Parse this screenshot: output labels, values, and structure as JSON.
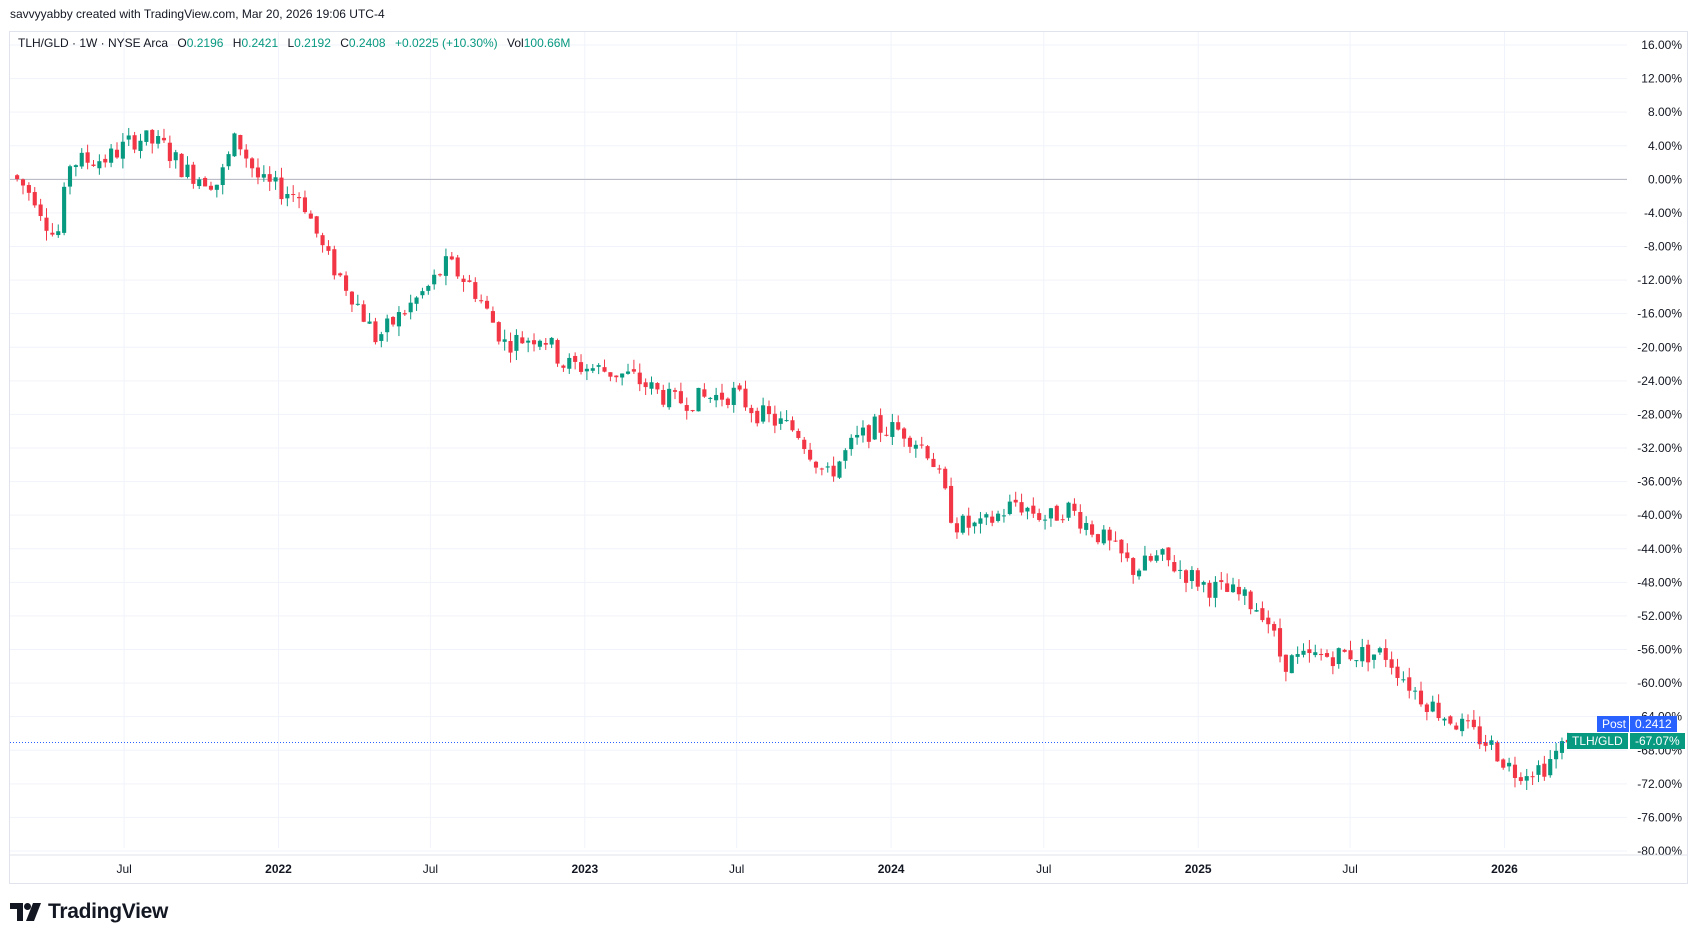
{
  "header": {
    "watermark": "savvyyabby created with TradingView.com, Mar 20, 2026 19:06 UTC-4"
  },
  "legend": {
    "symbol": "TLH/GLD · 1W · NYSE Arca",
    "open_label": "O",
    "open": "0.2196",
    "high_label": "H",
    "high": "0.2421",
    "low_label": "L",
    "low": "0.2192",
    "close_label": "C",
    "close": "0.2408",
    "change": "+0.0225 (+10.30%)",
    "volume_label": "Vol",
    "volume": "100.66M"
  },
  "price_tags": {
    "post_label": "Post",
    "post_value": "0.2412",
    "symbol_label": "TLH/GLD",
    "symbol_value": "-67.07%"
  },
  "brand": {
    "name": "TradingView"
  },
  "colors": {
    "up": "#089981",
    "down": "#f23645",
    "baseline": "#b2b5be",
    "current_line": "#2962ff",
    "post_tag": "#2962ff",
    "grid": "#f0f3fa"
  },
  "chart_data": {
    "type": "candlestick",
    "title": "TLH/GLD · 1W · NYSE Arca",
    "y_scale": "percent",
    "ylim": [
      -80,
      16
    ],
    "y_ticks": [
      "16.00%",
      "12.00%",
      "8.00%",
      "4.00%",
      "0.00%",
      "-4.00%",
      "-8.00%",
      "-12.00%",
      "-16.00%",
      "-20.00%",
      "-24.00%",
      "-28.00%",
      "-32.00%",
      "-36.00%",
      "-40.00%",
      "-44.00%",
      "-48.00%",
      "-52.00%",
      "-56.00%",
      "-60.00%",
      "-64.00%",
      "-68.00%",
      "-72.00%",
      "-76.00%",
      "-80.00%"
    ],
    "x_ticks": [
      {
        "label": "Jul",
        "date": "2021-07-01"
      },
      {
        "label": "2022",
        "date": "2022-01-01"
      },
      {
        "label": "Jul",
        "date": "2022-07-01"
      },
      {
        "label": "2023",
        "date": "2023-01-01"
      },
      {
        "label": "Jul",
        "date": "2023-07-01"
      },
      {
        "label": "2024",
        "date": "2024-01-01"
      },
      {
        "label": "Jul",
        "date": "2024-07-01"
      },
      {
        "label": "2025",
        "date": "2025-01-01"
      },
      {
        "label": "Jul",
        "date": "2025-07-01"
      },
      {
        "label": "2026",
        "date": "2026-01-01"
      }
    ],
    "x_range": [
      "2021-02-15",
      "2026-05-27"
    ],
    "baseline_pct": 0,
    "current_pct": -67.07,
    "trend_pct": [
      {
        "date": "2021-02-20",
        "pct": 0.5
      },
      {
        "date": "2021-03-20",
        "pct": -2.0
      },
      {
        "date": "2021-04-15",
        "pct": -7.5
      },
      {
        "date": "2021-05-01",
        "pct": 2.0
      },
      {
        "date": "2021-06-15",
        "pct": 2.5
      },
      {
        "date": "2021-07-20",
        "pct": 5.0
      },
      {
        "date": "2021-08-20",
        "pct": 4.0
      },
      {
        "date": "2021-09-15",
        "pct": 1.0
      },
      {
        "date": "2021-10-25",
        "pct": -0.5
      },
      {
        "date": "2021-11-15",
        "pct": 5.0
      },
      {
        "date": "2021-12-15",
        "pct": -0.5
      },
      {
        "date": "2022-02-01",
        "pct": -2.0
      },
      {
        "date": "2022-03-01",
        "pct": -9.0
      },
      {
        "date": "2022-04-01",
        "pct": -13.5
      },
      {
        "date": "2022-05-01",
        "pct": -19.0
      },
      {
        "date": "2022-06-01",
        "pct": -16.0
      },
      {
        "date": "2022-07-01",
        "pct": -13.0
      },
      {
        "date": "2022-07-25",
        "pct": -10.0
      },
      {
        "date": "2022-08-25",
        "pct": -13.0
      },
      {
        "date": "2022-10-01",
        "pct": -19.5
      },
      {
        "date": "2022-11-15",
        "pct": -18.5
      },
      {
        "date": "2022-12-10",
        "pct": -22.0
      },
      {
        "date": "2023-01-15",
        "pct": -22.5
      },
      {
        "date": "2023-03-01",
        "pct": -23.5
      },
      {
        "date": "2023-04-20",
        "pct": -26.5
      },
      {
        "date": "2023-06-01",
        "pct": -26.0
      },
      {
        "date": "2023-07-01",
        "pct": -25.5
      },
      {
        "date": "2023-08-01",
        "pct": -28.0
      },
      {
        "date": "2023-09-15",
        "pct": -30.0
      },
      {
        "date": "2023-10-20",
        "pct": -35.5
      },
      {
        "date": "2023-11-20",
        "pct": -31.5
      },
      {
        "date": "2023-12-15",
        "pct": -29.5
      },
      {
        "date": "2024-01-20",
        "pct": -30.0
      },
      {
        "date": "2024-02-20",
        "pct": -32.5
      },
      {
        "date": "2024-03-20",
        "pct": -41.0
      },
      {
        "date": "2024-04-20",
        "pct": -41.5
      },
      {
        "date": "2024-06-01",
        "pct": -38.5
      },
      {
        "date": "2024-07-10",
        "pct": -40.5
      },
      {
        "date": "2024-08-01",
        "pct": -39.0
      },
      {
        "date": "2024-09-15",
        "pct": -43.0
      },
      {
        "date": "2024-10-20",
        "pct": -46.5
      },
      {
        "date": "2024-11-20",
        "pct": -45.0
      },
      {
        "date": "2025-01-15",
        "pct": -48.5
      },
      {
        "date": "2025-02-20",
        "pct": -49.5
      },
      {
        "date": "2025-03-25",
        "pct": -51.5
      },
      {
        "date": "2025-04-15",
        "pct": -57.5
      },
      {
        "date": "2025-05-20",
        "pct": -57.0
      },
      {
        "date": "2025-07-01",
        "pct": -56.5
      },
      {
        "date": "2025-08-15",
        "pct": -56.5
      },
      {
        "date": "2025-09-20",
        "pct": -61.0
      },
      {
        "date": "2025-10-20",
        "pct": -63.5
      },
      {
        "date": "2025-11-20",
        "pct": -65.5
      },
      {
        "date": "2025-12-20",
        "pct": -67.5
      },
      {
        "date": "2026-01-15",
        "pct": -70.5
      },
      {
        "date": "2026-02-20",
        "pct": -70.0
      },
      {
        "date": "2026-03-20",
        "pct": -67.07
      }
    ]
  }
}
